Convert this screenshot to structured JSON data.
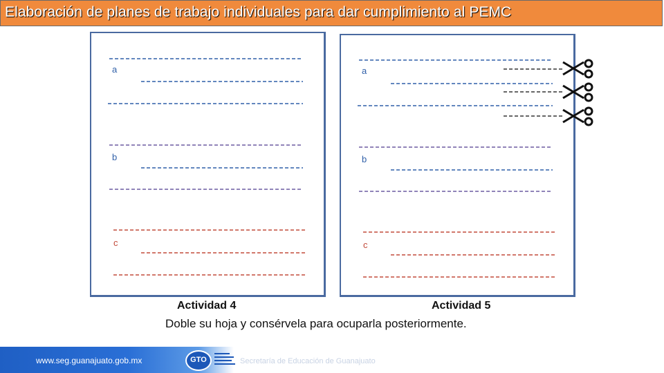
{
  "header": {
    "title": "Elaboración de planes de trabajo individuales para dar cumplimiento al PEMC"
  },
  "sheets": [
    {
      "id": "left",
      "sections": [
        {
          "letter": "a",
          "color": "#2f5fa8"
        },
        {
          "letter": "b",
          "color": "#2f5fa8"
        },
        {
          "letter": "c",
          "color": "#c24a3a"
        }
      ]
    },
    {
      "id": "right",
      "sections": [
        {
          "letter": "a",
          "color": "#2f5fa8"
        },
        {
          "letter": "b",
          "color": "#2f5fa8"
        },
        {
          "letter": "c",
          "color": "#c24a3a"
        }
      ]
    }
  ],
  "activities": {
    "left": "Actividad 4",
    "right": "Actividad 5"
  },
  "instruction": "Doble su hoja y consérvela para ocuparla posteriormente.",
  "footer": {
    "url": "www.seg.guanajuato.gob.mx",
    "logo_text": "GTO",
    "agency": "Secretaría de Educación de Guanajuato"
  },
  "icons": [
    "scissors-icon"
  ],
  "colors": {
    "header": "#f08a3c",
    "footer": "#1f5fc4",
    "sheet_border": "#4a6aa0"
  }
}
